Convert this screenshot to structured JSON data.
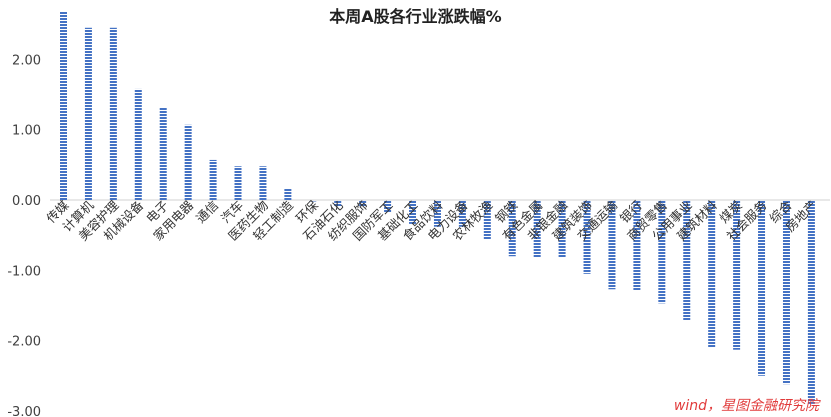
{
  "chart_data": {
    "type": "bar",
    "title": "本周A股各行业涨跌幅%",
    "xlabel": "",
    "ylabel": "",
    "ylim": [
      -3.0,
      2.7
    ],
    "yticks": [
      "2.00",
      "1.00",
      "0.00",
      "-1.00",
      "-2.00",
      "-3.00"
    ],
    "grid": false,
    "legend": "none",
    "bar_color": "#4472c4",
    "categories": [
      "传媒",
      "计算机",
      "美容护理",
      "机械设备",
      "电子",
      "家用电器",
      "通信",
      "汽车",
      "医药生物",
      "轻工制造",
      "环保",
      "石油石化",
      "纺织服饰",
      "国防军工",
      "基础化工",
      "食品饮料",
      "电力设备",
      "农林牧渔",
      "钢铁",
      "有色金属",
      "非银金融",
      "建筑装饰",
      "交通运输",
      "银行",
      "商贸零售",
      "公用事业",
      "建筑材料",
      "煤炭",
      "社会服务",
      "综合",
      "房地产"
    ],
    "values": [
      2.68,
      2.45,
      2.45,
      1.58,
      1.31,
      1.07,
      0.57,
      0.48,
      0.48,
      0.16,
      -0.02,
      -0.1,
      -0.1,
      -0.18,
      -0.34,
      -0.38,
      -0.38,
      -0.56,
      -0.8,
      -0.82,
      -0.82,
      -1.05,
      -1.27,
      -1.29,
      -1.47,
      -1.72,
      -2.1,
      -2.13,
      -2.5,
      -2.62,
      -2.9
    ]
  },
  "watermark": "wind，星图金融研究院"
}
